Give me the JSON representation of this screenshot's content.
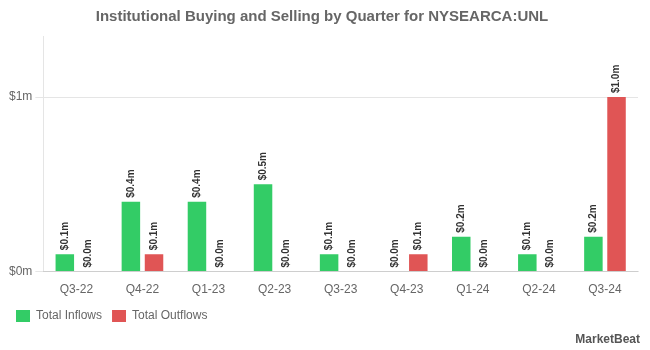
{
  "chart_data": {
    "type": "bar",
    "title": "Institutional Buying and Selling by Quarter for NYSEARCA:UNL",
    "categories": [
      "Q3-22",
      "Q4-22",
      "Q1-23",
      "Q2-23",
      "Q3-23",
      "Q4-23",
      "Q1-24",
      "Q2-24",
      "Q3-24"
    ],
    "series": [
      {
        "name": "Total Inflows",
        "color": "#33cc66",
        "values": [
          0.1,
          0.4,
          0.4,
          0.5,
          0.1,
          0.0,
          0.2,
          0.1,
          0.2
        ],
        "value_labels": [
          "$0.1m",
          "$0.4m",
          "$0.4m",
          "$0.5m",
          "$0.1m",
          "$0.0m",
          "$0.2m",
          "$0.1m",
          "$0.2m"
        ]
      },
      {
        "name": "Total Outflows",
        "color": "#e05555",
        "values": [
          0.0,
          0.1,
          0.0,
          0.0,
          0.0,
          0.1,
          0.0,
          0.0,
          1.0
        ],
        "value_labels": [
          "$0.0m",
          "$0.1m",
          "$0.0m",
          "$0.0m",
          "$0.0m",
          "$0.1m",
          "$0.0m",
          "$0.0m",
          "$1.0m"
        ]
      }
    ],
    "ylim": [
      0,
      1.35
    ],
    "yticks": [
      {
        "value": 0,
        "label": "$0m"
      },
      {
        "value": 1,
        "label": "$1m"
      }
    ],
    "grid": true,
    "legend": "lower left",
    "data_labels": true,
    "annotations": [
      "MarketBeat"
    ]
  }
}
